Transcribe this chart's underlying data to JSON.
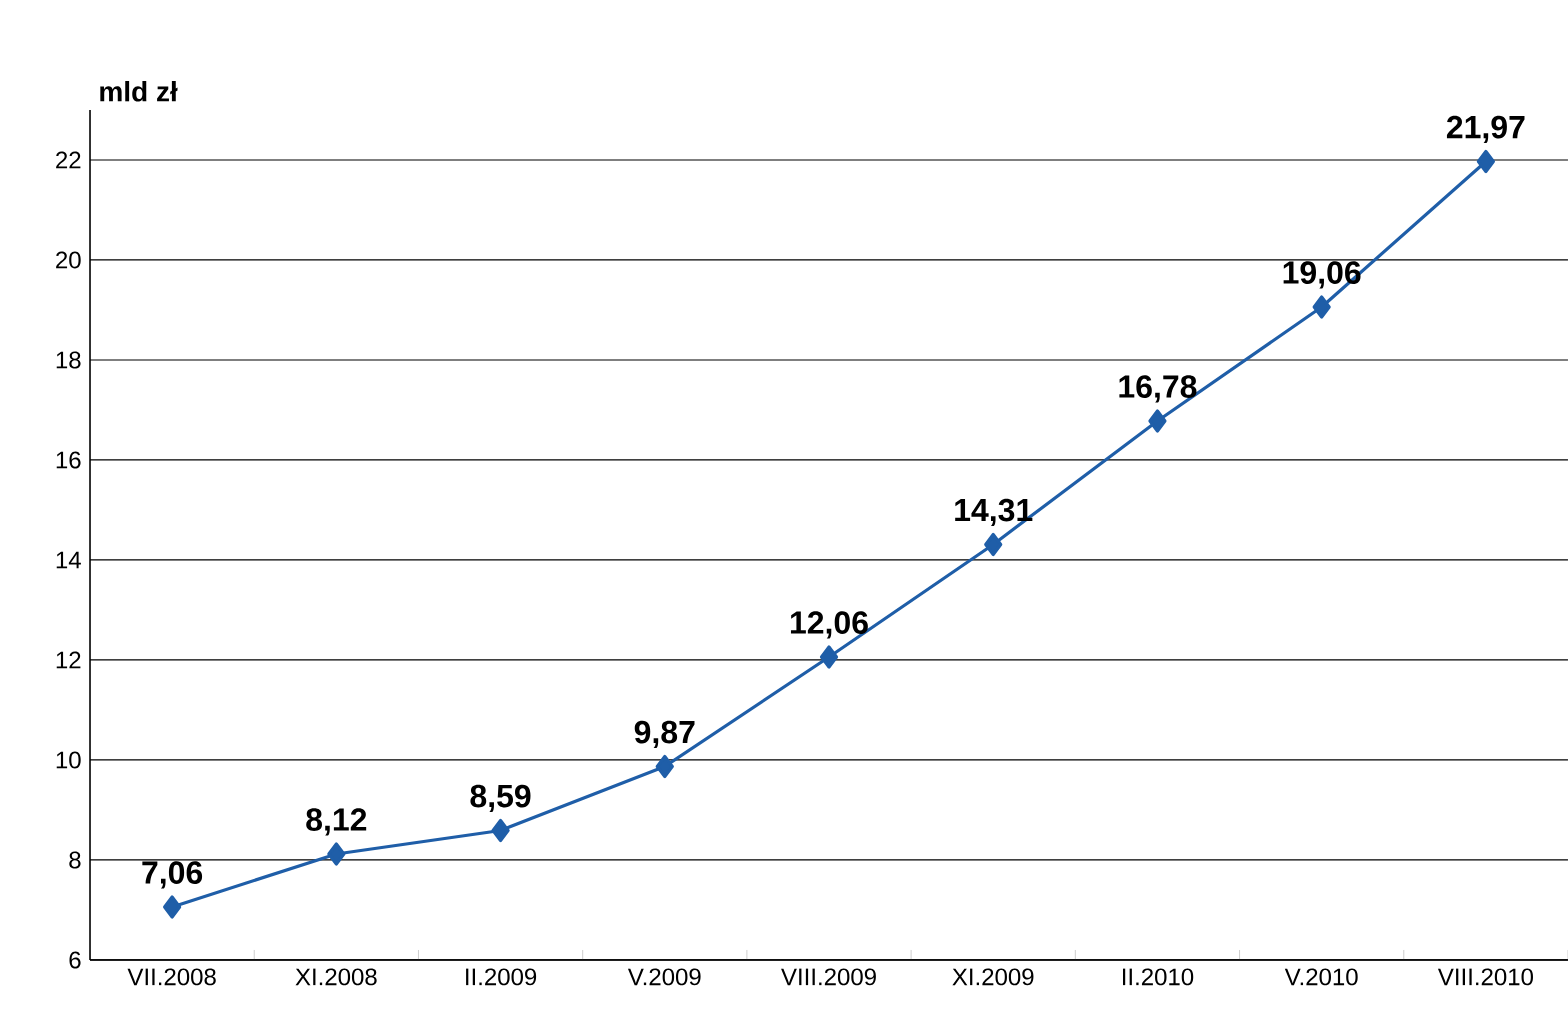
{
  "chart_data": {
    "type": "line",
    "ylabel": "mld zł",
    "categories": [
      "VII.2008",
      "XI.2008",
      "II.2009",
      "V.2009",
      "VIII.2009",
      "XI.2009",
      "II.2010",
      "V.2010",
      "VIII.2010"
    ],
    "values": [
      7.06,
      8.12,
      8.59,
      9.87,
      12.06,
      14.31,
      16.78,
      19.06,
      21.97
    ],
    "value_labels": [
      "7,06",
      "8,12",
      "8,59",
      "9,87",
      "12,06",
      "14,31",
      "16,78",
      "19,06",
      "21,97"
    ],
    "color": "#1f5ea8",
    "marker": "diamond",
    "line_style": "solid",
    "grid": "y",
    "ylim": [
      6,
      23
    ],
    "yticks": [
      6,
      8,
      10,
      12,
      14,
      16,
      18,
      20,
      22
    ]
  }
}
